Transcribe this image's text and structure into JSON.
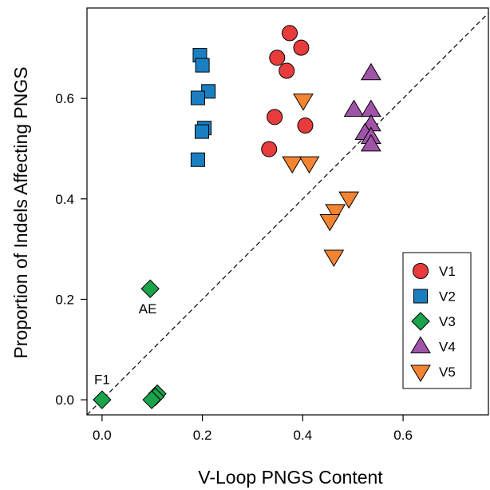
{
  "chart_data": {
    "type": "scatter",
    "title": "",
    "xlabel": "V-Loop PNGS Content",
    "ylabel": "Proportion of Indels Affecting PNGS",
    "xlim": [
      -0.03,
      0.77
    ],
    "ylim": [
      -0.03,
      0.78
    ],
    "x_ticks": [
      0.0,
      0.2,
      0.4,
      0.6
    ],
    "x_tick_labels": [
      "0.0",
      "0.2",
      "0.4",
      "0.6"
    ],
    "y_ticks": [
      0.0,
      0.2,
      0.4,
      0.6
    ],
    "y_tick_labels": [
      "0.0",
      "0.2",
      "0.4",
      "0.6"
    ],
    "grid": false,
    "legend_position": "bottom-right",
    "reference_line": {
      "style": "dashed",
      "slope": 1,
      "intercept": 0
    },
    "annotations": [
      {
        "text": "AE",
        "x": 0.091,
        "y": 0.182
      },
      {
        "text": "F1",
        "x": 0.0,
        "y": 0.041
      }
    ],
    "series": [
      {
        "name": "V1",
        "marker": "circle",
        "color": "#e83c3c",
        "x": [
          0.374,
          0.349,
          0.397,
          0.368,
          0.344,
          0.405,
          0.333
        ],
        "y": [
          0.73,
          0.681,
          0.701,
          0.655,
          0.563,
          0.546,
          0.499
        ]
      },
      {
        "name": "V2",
        "marker": "square",
        "color": "#1a7fc1",
        "x": [
          0.195,
          0.2,
          0.212,
          0.191,
          0.204,
          0.199,
          0.191
        ],
        "y": [
          0.686,
          0.666,
          0.614,
          0.601,
          0.541,
          0.534,
          0.478
        ]
      },
      {
        "name": "V3",
        "marker": "diamond",
        "color": "#1aa34a",
        "x": [
          0.096,
          0.0,
          0.11,
          0.106,
          0.099
        ],
        "y": [
          0.221,
          0.0,
          0.012,
          0.006,
          0.0
        ]
      },
      {
        "name": "V4",
        "marker": "triangle-up",
        "color": "#a054a8",
        "x": [
          0.536,
          0.502,
          0.536,
          0.536,
          0.524,
          0.536,
          0.536
        ],
        "y": [
          0.65,
          0.577,
          0.577,
          0.548,
          0.531,
          0.523,
          0.508
        ]
      },
      {
        "name": "V5",
        "marker": "triangle-down",
        "color": "#f58432",
        "x": [
          0.401,
          0.379,
          0.413,
          0.492,
          0.465,
          0.454,
          0.462
        ],
        "y": [
          0.596,
          0.471,
          0.471,
          0.401,
          0.376,
          0.356,
          0.285
        ]
      }
    ]
  }
}
